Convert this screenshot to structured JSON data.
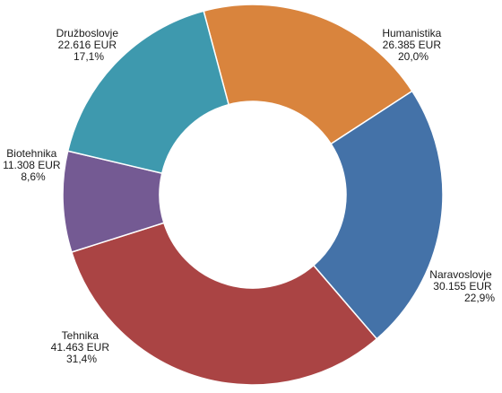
{
  "chart_data": {
    "type": "pie",
    "donut": true,
    "title": "",
    "start_angle_deg": -15,
    "direction": "clockwise",
    "slices": [
      {
        "name": "Humanistika",
        "value": 26385,
        "value_label": "26.385 EUR",
        "percent_label": "20,0%",
        "color": "#D9843D"
      },
      {
        "name": "Naravoslovje",
        "value": 30155,
        "value_label": "30.155 EUR",
        "percent_label": "22,9%",
        "color": "#4472A8"
      },
      {
        "name": "Tehnika",
        "value": 41463,
        "value_label": "41.463 EUR",
        "percent_label": "31,4%",
        "color": "#AA4444"
      },
      {
        "name": "Biotehnika",
        "value": 11308,
        "value_label": "11.308 EUR",
        "percent_label": "8,6%",
        "color": "#745A93"
      },
      {
        "name": "Družboslovje",
        "value": 22616,
        "value_label": "22.616 EUR",
        "percent_label": "17,1%",
        "color": "#3E99AE"
      }
    ]
  }
}
